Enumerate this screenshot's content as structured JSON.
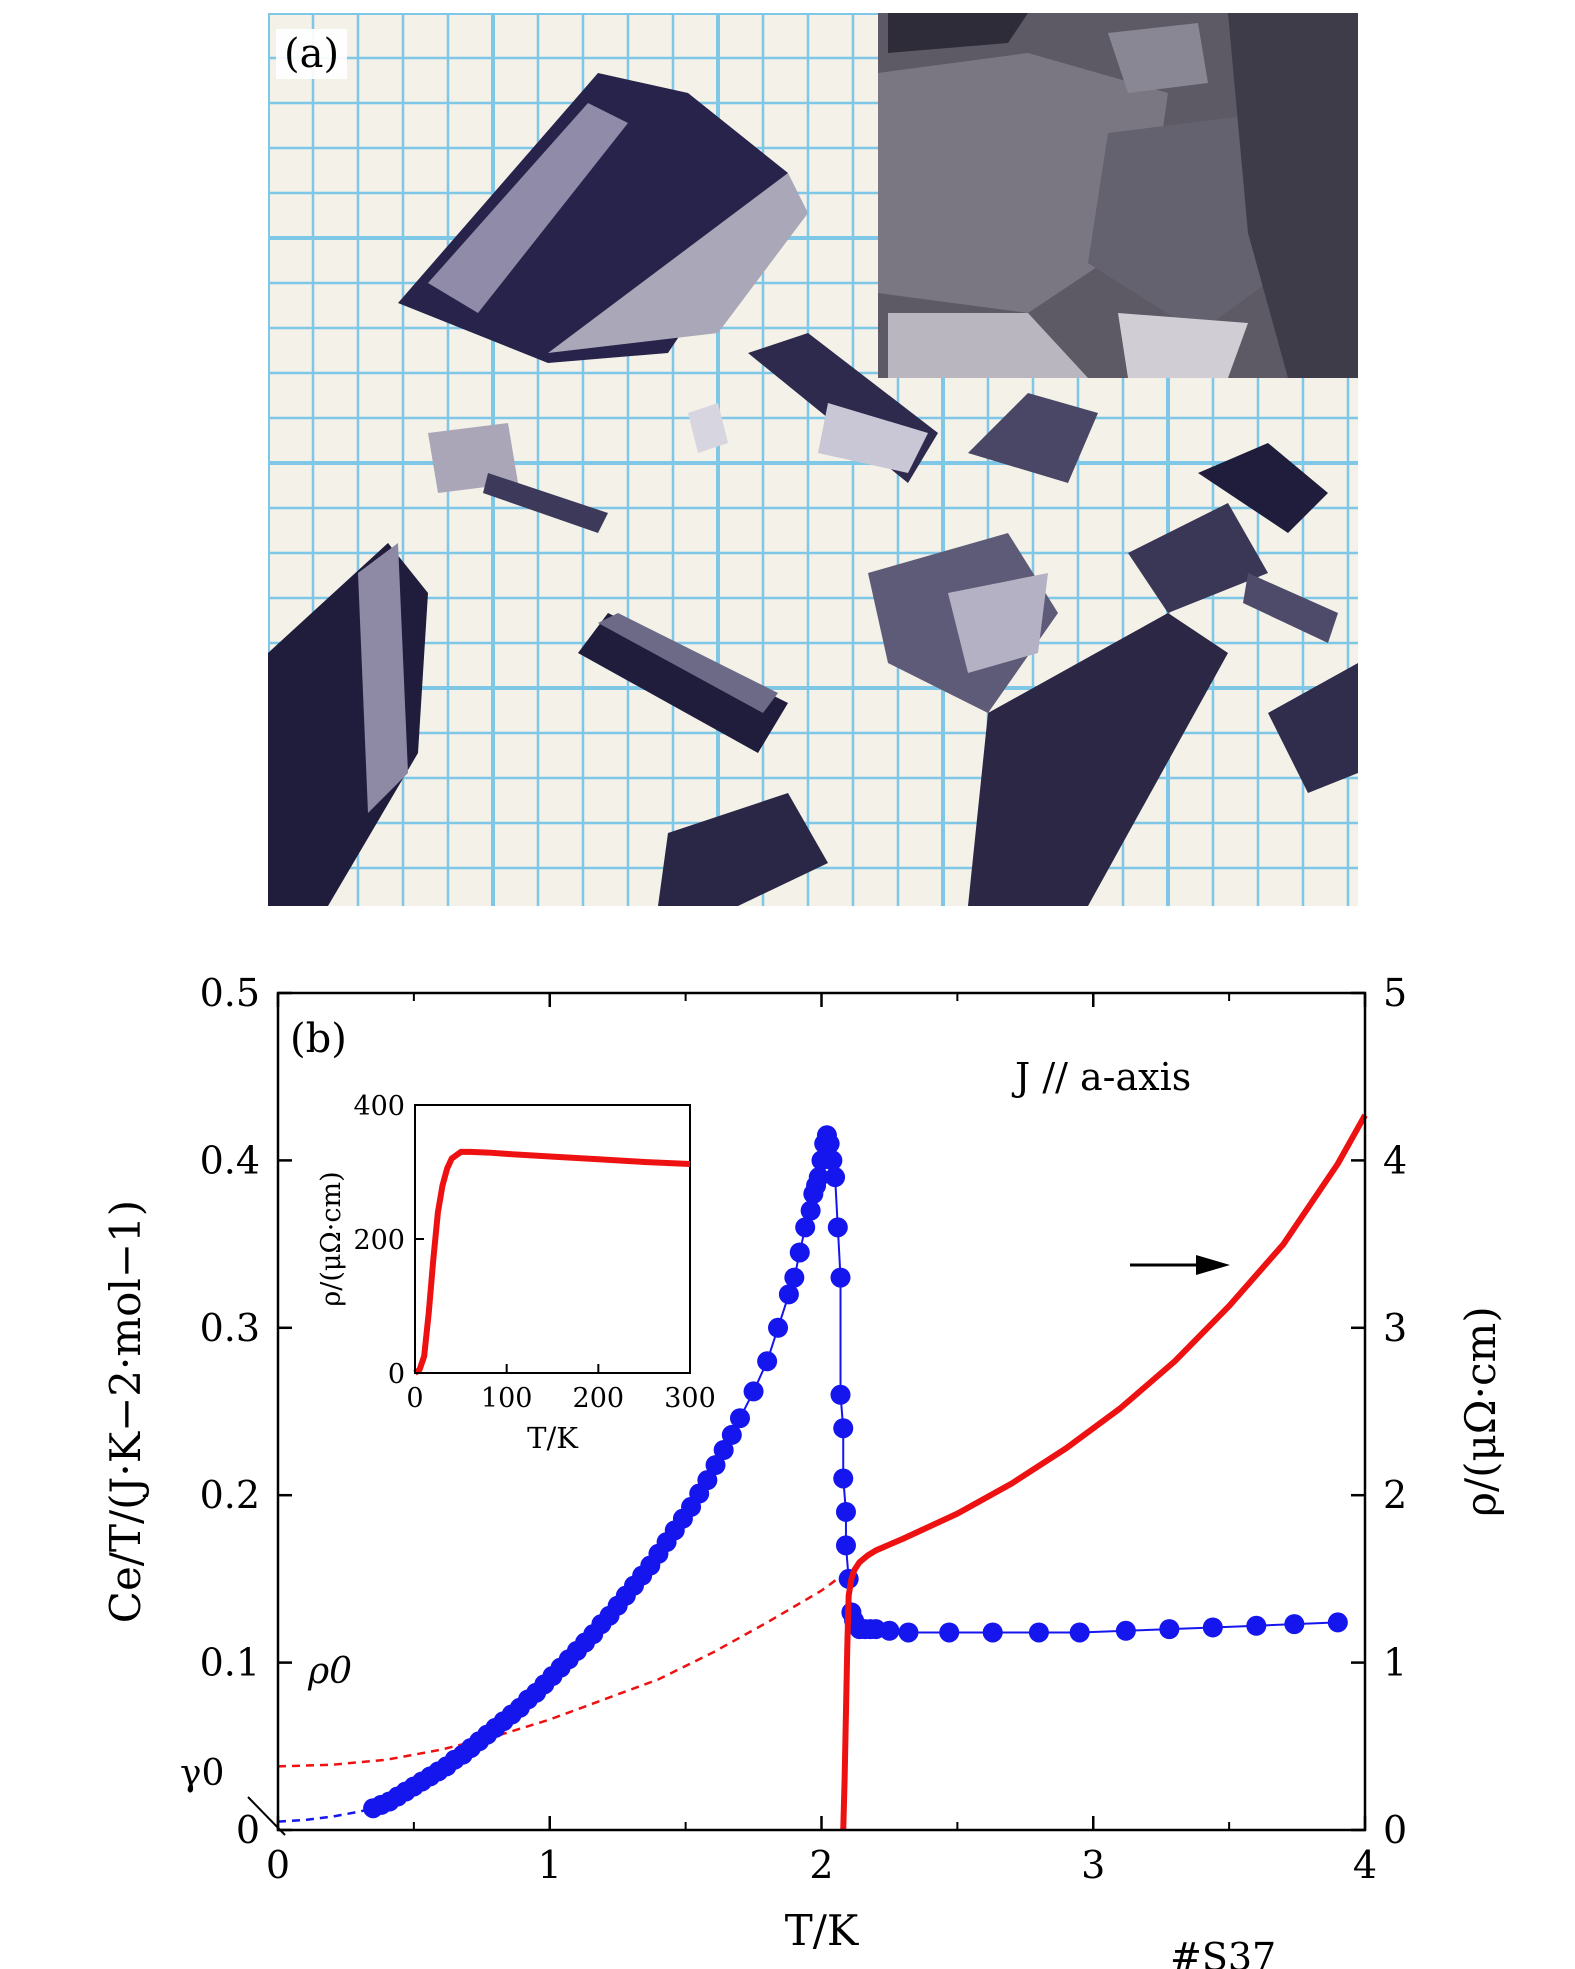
{
  "panel_a": {
    "label": "(a)",
    "colors": {
      "paper": "#f4f1e8",
      "grid": "#7ec7e6",
      "crystal": "#1f1c3c",
      "crystal_light": "#8f8ba8",
      "inset_bg": "#5d5a66"
    }
  },
  "chart_data": {
    "type": "scatter",
    "panel_label": "(b)",
    "xlabel": "T/K",
    "ylabel_left": "Ce/T/(J·K−2·mol−1)",
    "ylabel_right": "ρ/(μΩ·cm)",
    "xlim": [
      0,
      4
    ],
    "ylim_left": [
      0,
      0.5
    ],
    "ylim_right": [
      0,
      5
    ],
    "x_ticks": [
      "0",
      "1",
      "2",
      "3",
      "4"
    ],
    "y_left_ticks": [
      "0",
      "0.1",
      "0.2",
      "0.3",
      "0.4",
      "0.5"
    ],
    "y_right_ticks": [
      "0",
      "1",
      "2",
      "3",
      "4",
      "5"
    ],
    "annotations": {
      "current": "J // a-axis",
      "sample": "#S37",
      "gamma0": "γ0",
      "rho0": "ρ0"
    },
    "colors": {
      "specific_heat": "#1515ee",
      "resistivity": "#ee1111"
    },
    "series": [
      {
        "kind": "specific_heat_points",
        "axis": "left",
        "x": [
          0.35,
          0.38,
          0.41,
          0.44,
          0.47,
          0.5,
          0.53,
          0.56,
          0.59,
          0.62,
          0.65,
          0.68,
          0.71,
          0.74,
          0.77,
          0.8,
          0.83,
          0.86,
          0.89,
          0.92,
          0.95,
          0.98,
          1.01,
          1.04,
          1.07,
          1.1,
          1.13,
          1.16,
          1.19,
          1.22,
          1.25,
          1.28,
          1.31,
          1.34,
          1.37,
          1.4,
          1.43,
          1.46,
          1.49,
          1.52,
          1.55,
          1.58,
          1.61,
          1.64,
          1.67,
          1.7,
          1.75,
          1.8,
          1.84,
          1.88,
          1.9,
          1.92,
          1.94,
          1.96,
          1.97,
          1.98,
          1.99,
          2.0,
          2.01,
          2.02,
          2.03,
          2.04,
          2.05,
          2.06,
          2.07,
          2.07,
          2.08,
          2.08,
          2.09,
          2.09,
          2.1,
          2.11,
          2.12,
          2.13,
          2.14,
          2.16,
          2.18,
          2.2,
          2.25,
          2.32,
          2.47,
          2.63,
          2.8,
          2.95,
          3.12,
          3.28,
          3.44,
          3.6,
          3.74,
          3.9
        ],
        "y": [
          0.013,
          0.015,
          0.017,
          0.02,
          0.023,
          0.026,
          0.029,
          0.032,
          0.035,
          0.038,
          0.042,
          0.045,
          0.049,
          0.053,
          0.057,
          0.061,
          0.065,
          0.069,
          0.073,
          0.078,
          0.082,
          0.087,
          0.092,
          0.097,
          0.102,
          0.107,
          0.112,
          0.117,
          0.123,
          0.128,
          0.134,
          0.14,
          0.146,
          0.152,
          0.158,
          0.165,
          0.172,
          0.179,
          0.186,
          0.193,
          0.201,
          0.209,
          0.218,
          0.227,
          0.236,
          0.246,
          0.262,
          0.28,
          0.3,
          0.32,
          0.33,
          0.345,
          0.36,
          0.37,
          0.38,
          0.385,
          0.39,
          0.4,
          0.41,
          0.415,
          0.41,
          0.4,
          0.39,
          0.36,
          0.33,
          0.26,
          0.24,
          0.21,
          0.19,
          0.17,
          0.15,
          0.13,
          0.125,
          0.122,
          0.12,
          0.12,
          0.12,
          0.12,
          0.119,
          0.118,
          0.118,
          0.118,
          0.118,
          0.118,
          0.119,
          0.12,
          0.121,
          0.122,
          0.123,
          0.124
        ]
      },
      {
        "kind": "resistivity_curve",
        "axis": "right",
        "x": [
          2.08,
          2.085,
          2.09,
          2.095,
          2.1,
          2.11,
          2.12,
          2.14,
          2.17,
          2.2,
          2.3,
          2.5,
          2.7,
          2.9,
          3.1,
          3.3,
          3.5,
          3.7,
          3.9,
          4.0
        ],
        "y": [
          0.0,
          0.3,
          0.7,
          1.1,
          1.4,
          1.5,
          1.55,
          1.6,
          1.64,
          1.67,
          1.74,
          1.89,
          2.07,
          2.28,
          2.52,
          2.8,
          3.13,
          3.5,
          3.98,
          4.27
        ]
      },
      {
        "kind": "rho0_extrapolation",
        "axis": "right",
        "x": [
          0.0,
          0.2,
          0.4,
          0.6,
          0.8,
          1.0,
          1.2,
          1.4,
          1.6,
          1.8,
          2.0,
          2.1
        ],
        "y": [
          0.38,
          0.39,
          0.42,
          0.48,
          0.56,
          0.66,
          0.78,
          0.9,
          1.06,
          1.24,
          1.43,
          1.55
        ]
      },
      {
        "kind": "gamma0_extrapolation",
        "axis": "left",
        "x": [
          0.0,
          0.1,
          0.2,
          0.3,
          0.35
        ],
        "y": [
          0.005,
          0.006,
          0.008,
          0.011,
          0.013
        ]
      }
    ],
    "inset": {
      "xlabel": "T/K",
      "ylabel": "ρ/(μΩ·cm)",
      "xlim": [
        0,
        300
      ],
      "ylim": [
        0,
        400
      ],
      "x_ticks": [
        "0",
        "100",
        "200",
        "300"
      ],
      "y_ticks": [
        "0",
        "200",
        "400"
      ],
      "x": [
        0,
        5,
        10,
        15,
        20,
        25,
        30,
        35,
        40,
        50,
        60,
        80,
        100,
        150,
        200,
        250,
        300
      ],
      "y": [
        0,
        5,
        25,
        90,
        170,
        240,
        280,
        305,
        320,
        330,
        330,
        329,
        327,
        323,
        319,
        315,
        312
      ]
    }
  }
}
